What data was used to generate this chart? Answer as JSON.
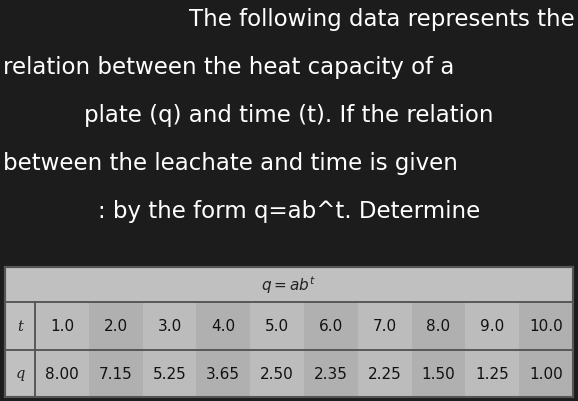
{
  "title_lines": [
    "The following data represents the",
    "relation between the heat capacity of a",
    "plate (q) and time (t). If the relation",
    "between the leachate and time is given",
    ": by the form q=ab^t. Determine"
  ],
  "col_header_t": "t",
  "col_header_q": "q",
  "t_values": [
    "1.0",
    "2.0",
    "3.0",
    "4.0",
    "5.0",
    "6.0",
    "7.0",
    "8.0",
    "9.0",
    "10.0"
  ],
  "q_values": [
    "8.00",
    "7.15",
    "5.25",
    "3.65",
    "2.50",
    "2.35",
    "2.25",
    "1.50",
    "1.25",
    "1.00"
  ],
  "bg_color": "#1c1c1c",
  "text_color": "#ffffff",
  "table_bg_light": "#c0c0c0",
  "table_bg_dark": "#aaaaaa",
  "table_row_alt1": "#b8b8b8",
  "table_row_alt2": "#a8a8a8",
  "table_border": "#555555",
  "title_fontsize": 16.5,
  "table_fontsize": 11.0,
  "table_header_fontsize": 10.5
}
